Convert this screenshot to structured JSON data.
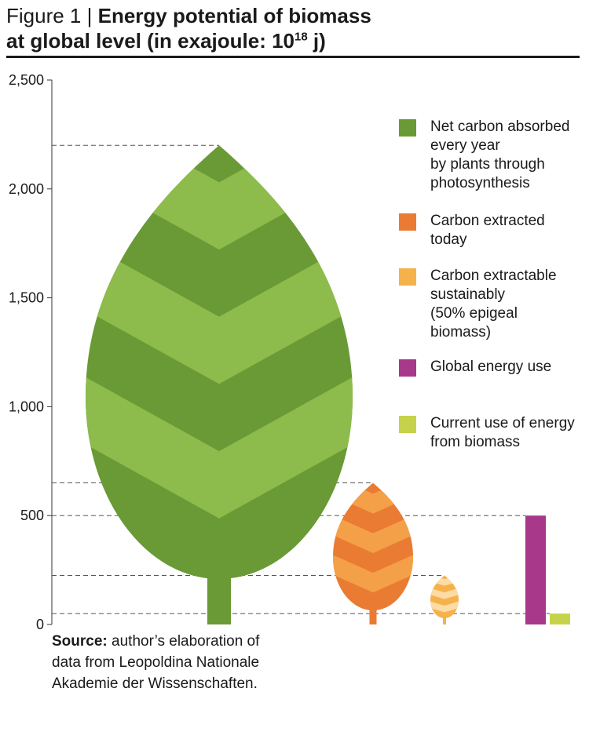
{
  "header": {
    "figure_label": "Figure 1",
    "separator": "|",
    "title_line1": "Energy potential of biomass",
    "title_line2_pre": "at global level (in exajoule: 10",
    "title_sup": "18",
    "title_line2_post": " j)"
  },
  "source": {
    "label": "Source:",
    "text": " author’s elaboration of data from Leopoldina Nationale Akademie der Wissenschaften."
  },
  "legend": {
    "items": [
      {
        "label": "Net carbon absorbed\nevery year\nby plants through\nphotosynthesis",
        "color": "#6a9a35"
      },
      {
        "label": "Carbon extracted\ntoday",
        "color": "#ea7b33"
      },
      {
        "label": "Carbon extractable\nsustainably\n(50% epigeal\nbiomass)",
        "color": "#f6b24a"
      },
      {
        "label": "Global energy use",
        "color": "#a8388a"
      },
      {
        "label": "Current use of energy\nfrom biomass",
        "color": "#c6d34a"
      }
    ]
  },
  "chart_data": {
    "type": "bar",
    "ylim": [
      0,
      2500
    ],
    "yticks": [
      "0",
      "500",
      "1,000",
      "1,500",
      "2,000",
      "2,500"
    ],
    "ytick_values": [
      0,
      500,
      1000,
      1500,
      2000,
      2500
    ],
    "grid": "dashed reference lines at each value",
    "series": [
      {
        "value": 2200,
        "shape": "leaf",
        "color": "#6a9a35",
        "light_color": "#8dbb4c"
      },
      {
        "value": 650,
        "shape": "leaf",
        "color": "#ea7b33",
        "light_color": "#f4a048"
      },
      {
        "value": 225,
        "shape": "leaf",
        "color": "#f6b24a",
        "light_color": "#fcdca4"
      },
      {
        "value": 500,
        "shape": "bar",
        "color": "#a8388a"
      },
      {
        "value": 50,
        "shape": "bar",
        "color": "#c6d34a"
      }
    ]
  }
}
